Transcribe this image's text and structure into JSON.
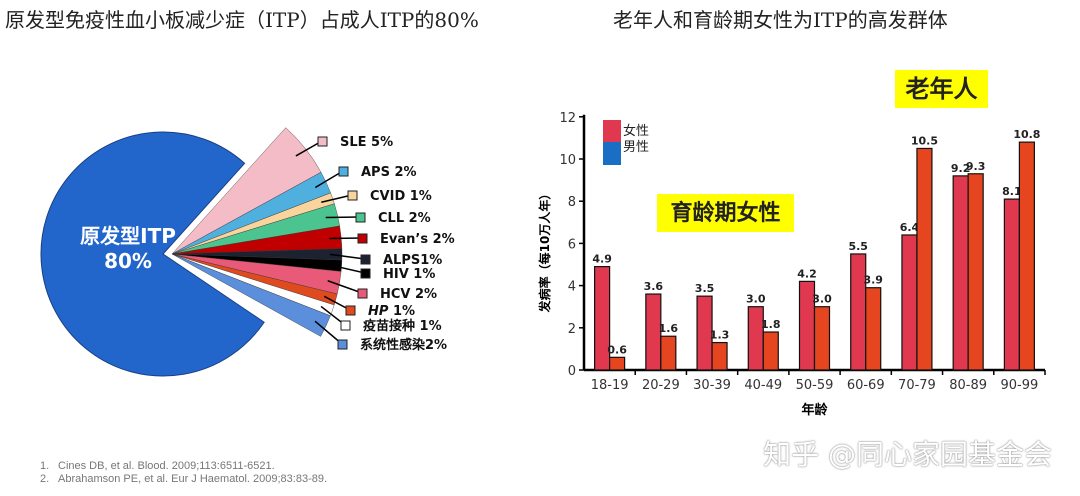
{
  "titles": {
    "left": "原发型免疫性血小板减少症（ITP）占成人ITP的80%",
    "right": "老年人和育龄期女性为ITP的高发群体"
  },
  "chart_data": [
    {
      "type": "pie",
      "main": {
        "label": "原发型ITP",
        "value_label": "80%",
        "value": 80,
        "color": "#2266cc"
      },
      "slices": [
        {
          "label": "SLE 5%",
          "value": 5,
          "color": "#f4bcc6"
        },
        {
          "label": "APS 2%",
          "value": 2,
          "color": "#4fb0e0"
        },
        {
          "label": "CVID 1%",
          "value": 1,
          "color": "#f9d49c"
        },
        {
          "label": "CLL 2%",
          "value": 2,
          "color": "#4cc490"
        },
        {
          "label": "Evan’s 2%",
          "value": 2,
          "color": "#c00000"
        },
        {
          "label": "ALPS1%",
          "value": 1,
          "color": "#1c2230"
        },
        {
          "label": "HIV 1%",
          "value": 1,
          "color": "#000000"
        },
        {
          "label": "HCV 2%",
          "value": 2,
          "color": "#e85a78"
        },
        {
          "label": "HP 1%",
          "value": 1,
          "color": "#e04a1f"
        },
        {
          "label": "疫苗接种 1%",
          "value": 1,
          "color": "#ffffff"
        },
        {
          "label": "系统性感染2%",
          "value": 2,
          "color": "#5b8fdc"
        }
      ]
    },
    {
      "type": "bar",
      "xlabel": "年龄",
      "ylabel": "发病率（每10万人年）",
      "ylim": [
        0,
        12
      ],
      "yticks": [
        0,
        2,
        4,
        6,
        8,
        10,
        12
      ],
      "categories": [
        "18-19",
        "20-29",
        "30-39",
        "40-49",
        "50-59",
        "60-69",
        "70-79",
        "80-89",
        "90-99"
      ],
      "series": [
        {
          "name": "女性",
          "color": "#e0384f",
          "values": [
            4.9,
            3.6,
            3.5,
            3.0,
            4.2,
            5.5,
            6.4,
            9.2,
            8.1
          ]
        },
        {
          "name": "男性",
          "color": "#e5461f",
          "legend_color": "#1a6fc4",
          "values": [
            0.6,
            1.6,
            1.3,
            1.8,
            3.0,
            3.9,
            10.5,
            9.3,
            10.8
          ]
        }
      ],
      "annotations": [
        "育龄期女性",
        "老年人"
      ],
      "legend": "top-left"
    }
  ],
  "references": [
    {
      "num": "1.",
      "text": "Cines DB, et al. Blood. 2009;113:6511-6521."
    },
    {
      "num": "2.",
      "text": "Abrahamson PE, et al. Eur J Haematol. 2009;83:83-89."
    }
  ],
  "watermark": "知乎 @同心家园基金会"
}
